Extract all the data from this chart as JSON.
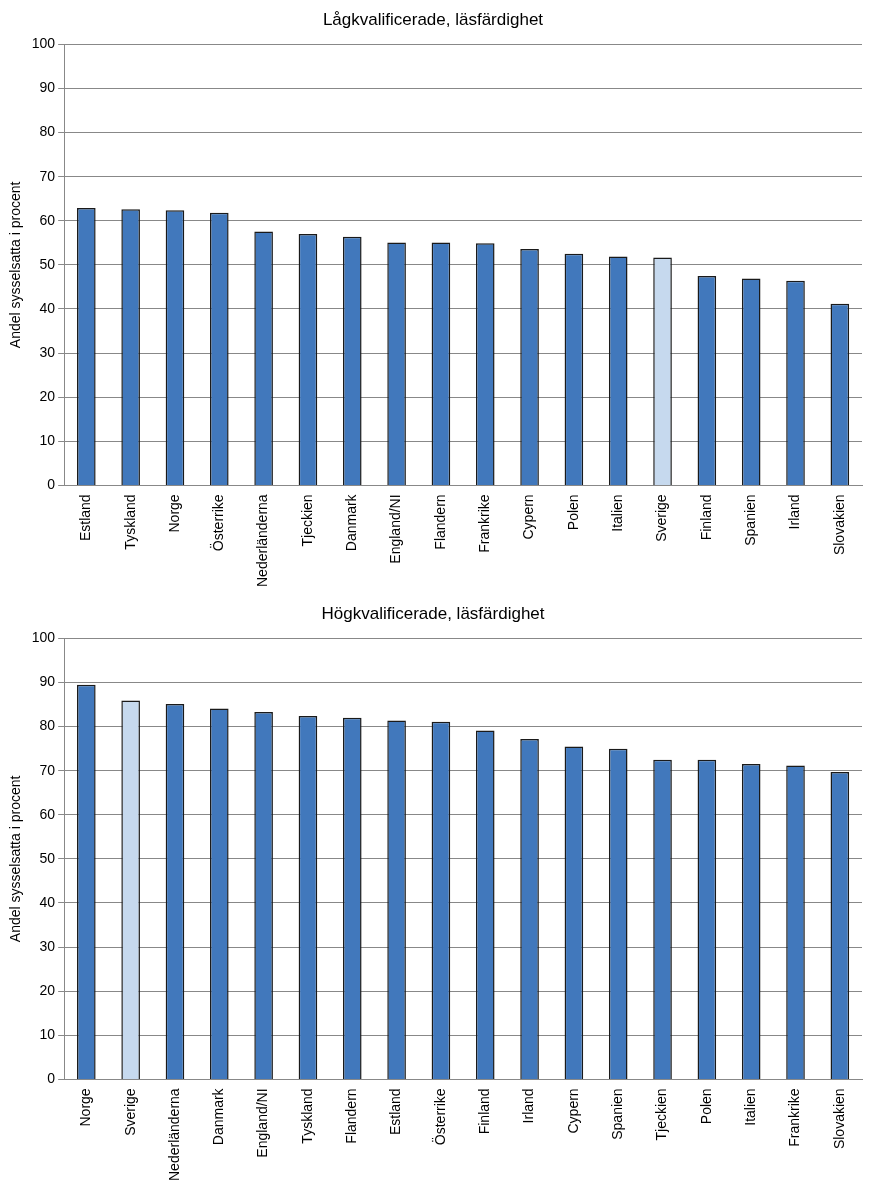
{
  "chart_data": [
    {
      "type": "bar",
      "title": "Lågkvalificerade, läsfärdighet",
      "ylabel": "Andel sysselsatta i procent",
      "categories": [
        "Estland",
        "Tyskland",
        "Norge",
        "Österrike",
        "Nederländerna",
        "Tjeckien",
        "Danmark",
        "England/NI",
        "Flandern",
        "Frankrike",
        "Cypern",
        "Polen",
        "Italien",
        "Sverige",
        "Finland",
        "Spanien",
        "Irland",
        "Slovakien"
      ],
      "values": [
        62.9,
        62.6,
        62.4,
        61.8,
        57.6,
        57.0,
        56.4,
        55.1,
        55.1,
        54.9,
        53.6,
        52.5,
        51.9,
        51.7,
        47.5,
        46.9,
        46.4,
        41.2
      ],
      "colors": [
        "#4178bc",
        "#4178bc",
        "#4178bc",
        "#4178bc",
        "#4178bc",
        "#4178bc",
        "#4178bc",
        "#4178bc",
        "#4178bc",
        "#4178bc",
        "#4178bc",
        "#4178bc",
        "#4178bc",
        "#c6d9ee",
        "#4178bc",
        "#4178bc",
        "#4178bc",
        "#4178bc"
      ],
      "ylim": [
        0,
        100
      ],
      "yticks": [
        0,
        10,
        20,
        30,
        40,
        50,
        60,
        70,
        80,
        90,
        100
      ],
      "grid": "y",
      "legend": false
    },
    {
      "type": "bar",
      "title": "Högkvalificerade, läsfärdighet",
      "ylabel": "Andel sysselsatta i procent",
      "categories": [
        "Norge",
        "Sverige",
        "Nederländerna",
        "Danmark",
        "England/NI",
        "Tyskland",
        "Flandern",
        "Estland",
        "Österrike",
        "Finland",
        "Irland",
        "Cypern",
        "Spanien",
        "Tjeckien",
        "Polen",
        "Italien",
        "Frankrike",
        "Slovakien"
      ],
      "values": [
        89.5,
        85.9,
        85.1,
        84.1,
        83.3,
        82.4,
        82.0,
        81.4,
        81.1,
        79.1,
        77.2,
        75.5,
        75.0,
        72.5,
        72.5,
        71.5,
        71.2,
        69.7
      ],
      "colors": [
        "#4178bc",
        "#c6d9ee",
        "#4178bc",
        "#4178bc",
        "#4178bc",
        "#4178bc",
        "#4178bc",
        "#4178bc",
        "#4178bc",
        "#4178bc",
        "#4178bc",
        "#4178bc",
        "#4178bc",
        "#4178bc",
        "#4178bc",
        "#4178bc",
        "#4178bc",
        "#4178bc"
      ],
      "ylim": [
        0,
        100
      ],
      "yticks": [
        0,
        10,
        20,
        30,
        40,
        50,
        60,
        70,
        80,
        90,
        100
      ],
      "grid": "y",
      "legend": false
    }
  ]
}
